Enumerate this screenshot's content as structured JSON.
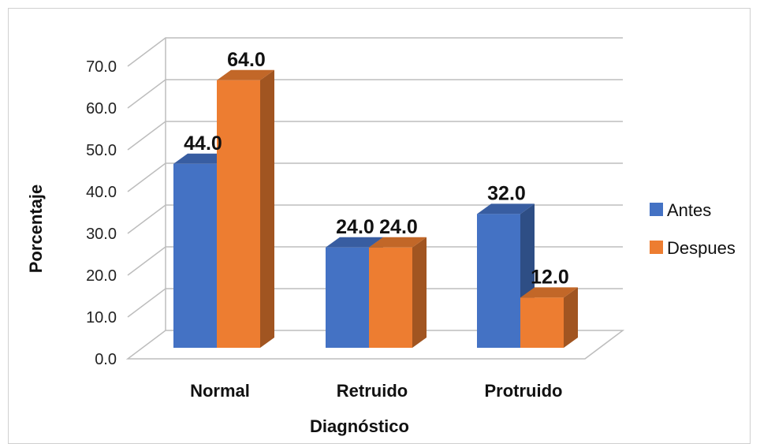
{
  "chart_data": {
    "type": "bar",
    "three_d": true,
    "categories": [
      "Normal",
      "Retruido",
      "Protruido"
    ],
    "series": [
      {
        "name": "Antes",
        "values": [
          44.0,
          24.0,
          32.0
        ],
        "color": "#4472C4",
        "label_text": [
          "44.0",
          "24.0",
          "32.0"
        ]
      },
      {
        "name": "Despues",
        "values": [
          64.0,
          24.0,
          12.0
        ],
        "color": "#ED7D31",
        "label_text": [
          "64.0",
          "24.0",
          "12.0"
        ]
      }
    ],
    "xlabel": "Diagnóstico",
    "ylabel": "Porcentaje",
    "ylim": [
      0,
      70
    ],
    "yticks": [
      "0.0",
      "10.0",
      "20.0",
      "30.0",
      "40.0",
      "50.0",
      "60.0",
      "70.0"
    ],
    "grid": true,
    "legend_position": "right"
  }
}
